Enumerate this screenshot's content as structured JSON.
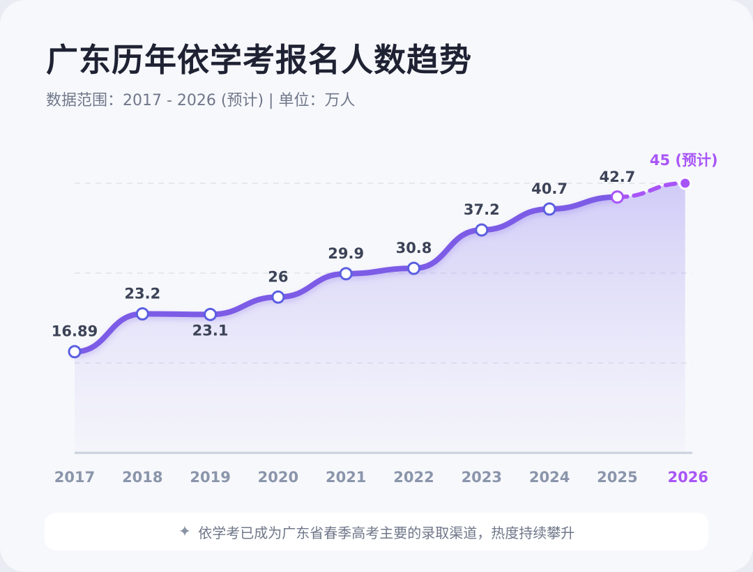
{
  "header": {
    "title": "广东历年依学考报名人数趋势",
    "subtitle": "数据范围：2017 - 2026 (预计) | 单位：万人"
  },
  "footer": {
    "icon": "sparkle-icon",
    "text": "依学考已成为广东省春季高考主要的录取渠道，热度持续攀升"
  },
  "colors": {
    "line": "#7c5be6",
    "forecast": "#a855f7",
    "point_stroke": "#5b5fe0",
    "label": "#3c4357",
    "axis_label": "#8a95ab"
  },
  "chart_data": {
    "type": "line",
    "categories": [
      "2017",
      "2018",
      "2019",
      "2020",
      "2021",
      "2022",
      "2023",
      "2024",
      "2025",
      "2026"
    ],
    "values": [
      16.89,
      23.2,
      23.1,
      26,
      29.9,
      30.8,
      37.2,
      40.7,
      42.7,
      45
    ],
    "point_labels": [
      "16.89",
      "23.2",
      "23.1",
      "26",
      "29.9",
      "30.8",
      "37.2",
      "40.7",
      "42.7",
      "45 (预计)"
    ],
    "forecast_from_index": 8,
    "forecast_category": "2026",
    "ylim": [
      0,
      50
    ],
    "grid": true,
    "y_tick_labels_shown": false
  }
}
